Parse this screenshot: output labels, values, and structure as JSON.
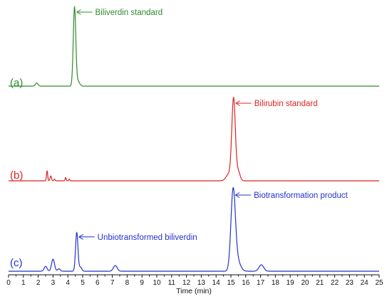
{
  "chart_data": {
    "type": "line",
    "xlabel": "Time (min)",
    "xlim": [
      0,
      25
    ],
    "x_ticks": [
      0,
      1,
      2,
      3,
      4,
      5,
      6,
      7,
      8,
      9,
      10,
      11,
      12,
      13,
      14,
      15,
      16,
      17,
      18,
      19,
      20,
      21,
      22,
      23,
      24,
      25
    ],
    "grid": false,
    "series": [
      {
        "name": "(a)",
        "label": "(a)",
        "color": "#2e8b2e",
        "peaks": [
          {
            "rt": 1.9,
            "height": 0.04,
            "width": 0.09
          },
          {
            "rt": 4.45,
            "height": 1.0,
            "width": 0.085
          },
          {
            "rt": 4.68,
            "height": 0.06,
            "width": 0.12
          }
        ],
        "annotations": [
          {
            "text": "Biliverdin standard",
            "rt": 4.45,
            "height": 1.0
          }
        ]
      },
      {
        "name": "(b)",
        "label": "(b)",
        "color": "#dd2222",
        "peaks": [
          {
            "rt": 2.6,
            "height": 0.12,
            "width": 0.04
          },
          {
            "rt": 2.85,
            "height": 0.06,
            "width": 0.05
          },
          {
            "rt": 3.1,
            "height": 0.02,
            "width": 0.04
          },
          {
            "rt": 3.85,
            "height": 0.04,
            "width": 0.035
          },
          {
            "rt": 4.1,
            "height": 0.02,
            "width": 0.035
          },
          {
            "rt": 14.85,
            "height": 0.08,
            "width": 0.18
          },
          {
            "rt": 15.18,
            "height": 1.0,
            "width": 0.12
          },
          {
            "rt": 15.5,
            "height": 0.11,
            "width": 0.12
          }
        ],
        "annotations": [
          {
            "text": "Bilirubin standard",
            "rt": 15.18,
            "height": 1.0
          }
        ]
      },
      {
        "name": "(c)",
        "label": "(c)",
        "color": "#2233cc",
        "peaks": [
          {
            "rt": 2.5,
            "height": 0.06,
            "width": 0.1
          },
          {
            "rt": 3.0,
            "height": 0.15,
            "width": 0.1
          },
          {
            "rt": 3.4,
            "height": 0.03,
            "width": 0.09
          },
          {
            "rt": 4.6,
            "height": 0.48,
            "width": 0.08
          },
          {
            "rt": 4.85,
            "height": 0.05,
            "width": 0.09
          },
          {
            "rt": 7.2,
            "height": 0.07,
            "width": 0.13
          },
          {
            "rt": 15.15,
            "height": 1.0,
            "width": 0.15
          },
          {
            "rt": 15.45,
            "height": 0.12,
            "width": 0.2
          },
          {
            "rt": 17.05,
            "height": 0.08,
            "width": 0.16
          }
        ],
        "annotations": [
          {
            "text": "Unbiotransformed biliverdin",
            "rt": 4.6,
            "height": 0.48
          },
          {
            "text": "Biotransformation product",
            "rt": 15.15,
            "height": 1.0
          }
        ]
      }
    ]
  }
}
